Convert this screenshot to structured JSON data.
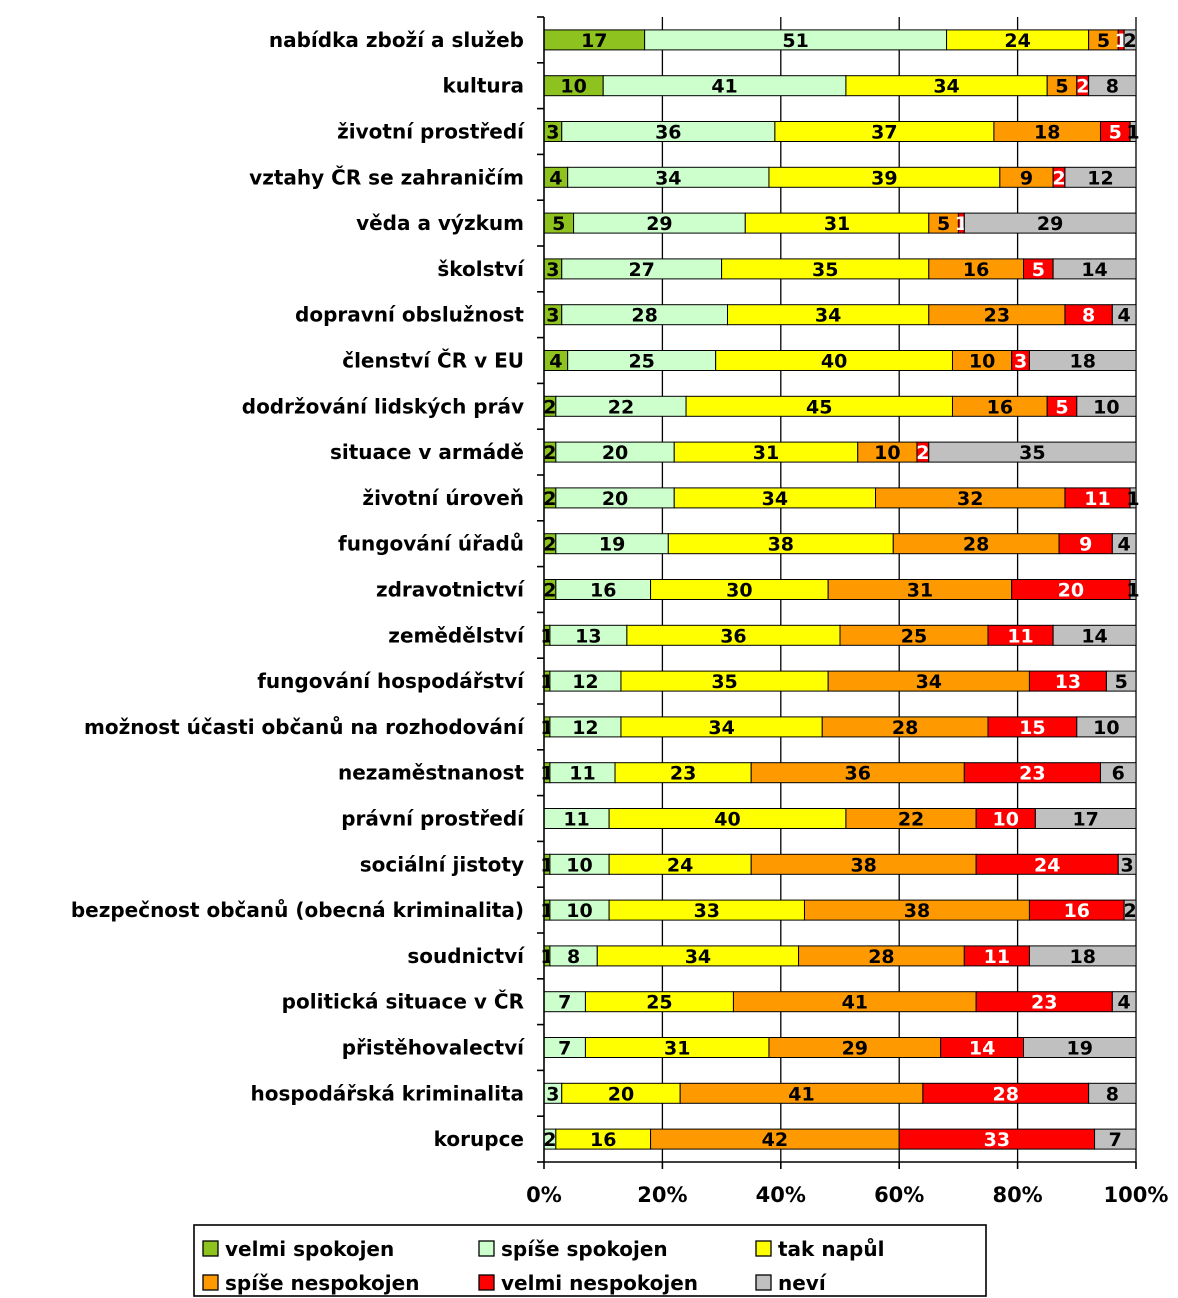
{
  "chart_data": {
    "type": "bar",
    "orientation": "horizontal",
    "stacked": true,
    "percent_stacked": true,
    "categories": [
      "nabídka zboží a služeb",
      "kultura",
      "životní prostředí",
      "vztahy ČR se zahraničím",
      "věda a výzkum",
      "školství",
      "dopravní obslužnost",
      "členství ČR v EU",
      "dodržování lidských práv",
      "situace v armádě",
      "životní úroveň",
      "fungování úřadů",
      "zdravotnictví",
      "zemědělství",
      "fungování hospodářství",
      "možnost účasti občanů na rozhodování",
      "nezaměstnanost",
      "právní prostředí",
      "sociální jistoty",
      "bezpečnost občanů (obecná kriminalita)",
      "soudnictví",
      "politická situace v ČR",
      "přistěhovalectví",
      "hospodářská kriminalita",
      "korupce"
    ],
    "series": [
      {
        "name": "velmi spokojen",
        "color": "#8DC21F",
        "label_color": "#000000",
        "values": [
          17,
          10,
          3,
          4,
          5,
          3,
          3,
          4,
          2,
          2,
          2,
          2,
          2,
          1,
          1,
          1,
          1,
          0,
          1,
          1,
          1,
          0,
          0,
          0,
          0
        ]
      },
      {
        "name": "spíše spokojen",
        "color": "#CCFFCC",
        "label_color": "#000000",
        "values": [
          51,
          41,
          36,
          34,
          29,
          27,
          28,
          25,
          22,
          20,
          20,
          19,
          16,
          13,
          12,
          12,
          11,
          11,
          10,
          10,
          8,
          7,
          7,
          3,
          2
        ]
      },
      {
        "name": "tak napůl",
        "color": "#FFFF00",
        "label_color": "#000000",
        "values": [
          24,
          34,
          37,
          39,
          31,
          35,
          34,
          40,
          45,
          31,
          34,
          38,
          30,
          36,
          35,
          34,
          23,
          40,
          24,
          33,
          34,
          25,
          31,
          20,
          16
        ]
      },
      {
        "name": "spíše nespokojen",
        "color": "#FF9900",
        "label_color": "#000000",
        "values": [
          5,
          5,
          18,
          9,
          5,
          16,
          23,
          10,
          16,
          10,
          32,
          28,
          31,
          25,
          34,
          28,
          36,
          22,
          38,
          38,
          28,
          41,
          29,
          41,
          42
        ]
      },
      {
        "name": "velmi nespokojen",
        "color": "#FF0000",
        "label_color": "#FFFFFF",
        "values": [
          1,
          2,
          5,
          2,
          1,
          5,
          8,
          3,
          5,
          2,
          11,
          9,
          20,
          11,
          13,
          15,
          23,
          10,
          24,
          16,
          11,
          23,
          14,
          28,
          33
        ]
      },
      {
        "name": "neví",
        "color": "#C0C0C0",
        "label_color": "#000000",
        "values": [
          2,
          8,
          1,
          12,
          29,
          14,
          4,
          18,
          10,
          35,
          1,
          4,
          1,
          14,
          5,
          10,
          6,
          17,
          3,
          2,
          18,
          4,
          19,
          8,
          7
        ]
      }
    ],
    "x_ticks": [
      "0%",
      "20%",
      "40%",
      "60%",
      "80%",
      "100%"
    ],
    "xlim": [
      0,
      100
    ],
    "grid": true,
    "legend_position": "bottom"
  }
}
